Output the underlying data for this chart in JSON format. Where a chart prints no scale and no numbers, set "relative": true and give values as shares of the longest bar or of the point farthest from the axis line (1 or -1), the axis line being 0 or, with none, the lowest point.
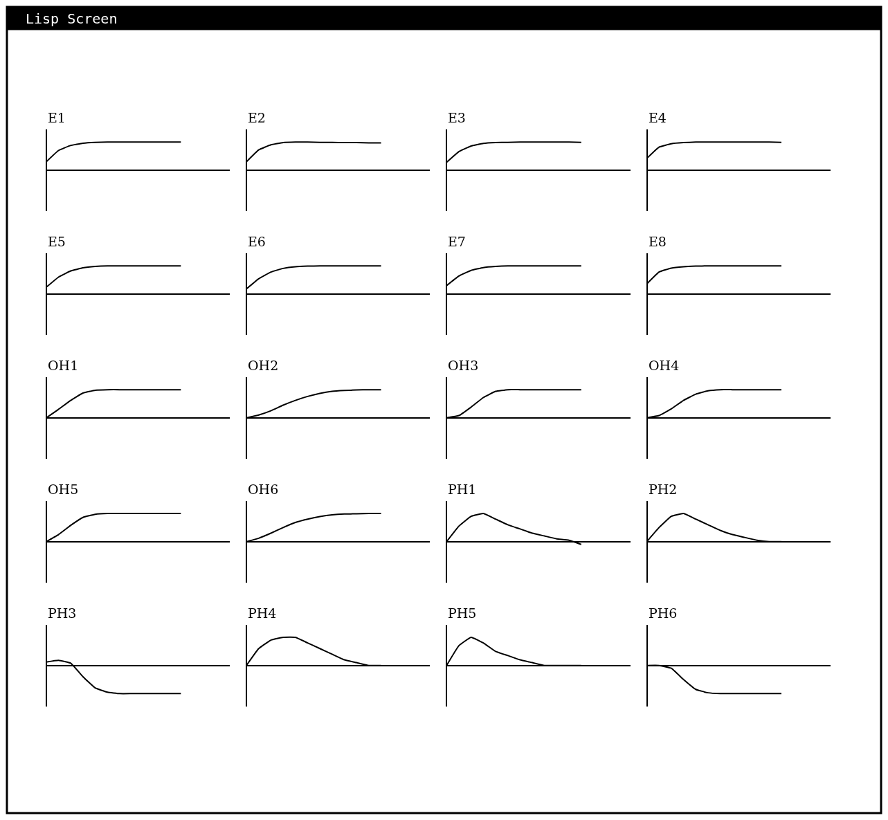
{
  "chart_data": [
    {
      "type": "line",
      "title": "E1",
      "relative": true,
      "color": "#000000",
      "categories": [
        null,
        null,
        null,
        null,
        null,
        null,
        null,
        null,
        null,
        null,
        null,
        null,
        null,
        null,
        null
      ],
      "values": [
        0.3,
        0.7,
        0.88,
        0.96,
        0.99,
        1,
        1,
        1,
        1,
        1,
        1,
        1,
        null,
        null,
        null
      ]
    },
    {
      "type": "line",
      "title": "E2",
      "relative": true,
      "color": "#000000",
      "categories": [
        null,
        null,
        null,
        null,
        null,
        null,
        null,
        null,
        null,
        null,
        null,
        null,
        null,
        null,
        null
      ],
      "values": [
        0.3,
        0.72,
        0.9,
        0.98,
        1,
        1,
        0.99,
        0.99,
        0.98,
        0.98,
        0.97,
        0.97,
        null,
        null,
        null
      ]
    },
    {
      "type": "line",
      "title": "E3",
      "relative": true,
      "color": "#000000",
      "categories": [
        null,
        null,
        null,
        null,
        null,
        null,
        null,
        null,
        null,
        null,
        null,
        null,
        null,
        null,
        null
      ],
      "values": [
        0.28,
        0.66,
        0.86,
        0.95,
        0.98,
        0.99,
        1,
        1,
        1,
        1,
        1,
        0.99,
        null,
        null,
        null
      ]
    },
    {
      "type": "line",
      "title": "E4",
      "relative": true,
      "color": "#000000",
      "categories": [
        null,
        null,
        null,
        null,
        null,
        null,
        null,
        null,
        null,
        null,
        null,
        null,
        null,
        null,
        null
      ],
      "values": [
        0.42,
        0.82,
        0.94,
        0.98,
        1,
        1,
        1,
        1,
        1,
        1,
        1,
        0.99,
        null,
        null,
        null
      ]
    },
    {
      "type": "line",
      "title": "E5",
      "relative": true,
      "color": "#000000",
      "categories": [
        null,
        null,
        null,
        null,
        null,
        null,
        null,
        null,
        null,
        null,
        null,
        null,
        null,
        null,
        null
      ],
      "values": [
        0.24,
        0.6,
        0.82,
        0.93,
        0.98,
        1,
        1,
        1,
        1,
        1,
        1,
        1,
        null,
        null,
        null
      ]
    },
    {
      "type": "line",
      "title": "E6",
      "relative": true,
      "color": "#000000",
      "categories": [
        null,
        null,
        null,
        null,
        null,
        null,
        null,
        null,
        null,
        null,
        null,
        null,
        null,
        null,
        null
      ],
      "values": [
        0.18,
        0.54,
        0.78,
        0.91,
        0.97,
        0.99,
        1,
        1,
        1,
        1,
        1,
        1,
        null,
        null,
        null
      ]
    },
    {
      "type": "line",
      "title": "E7",
      "relative": true,
      "color": "#000000",
      "categories": [
        null,
        null,
        null,
        null,
        null,
        null,
        null,
        null,
        null,
        null,
        null,
        null,
        null,
        null,
        null
      ],
      "values": [
        0.3,
        0.64,
        0.84,
        0.94,
        0.98,
        1,
        1,
        1,
        1,
        1,
        1,
        1,
        null,
        null,
        null
      ]
    },
    {
      "type": "line",
      "title": "E8",
      "relative": true,
      "color": "#000000",
      "categories": [
        null,
        null,
        null,
        null,
        null,
        null,
        null,
        null,
        null,
        null,
        null,
        null,
        null,
        null,
        null
      ],
      "values": [
        0.36,
        0.78,
        0.92,
        0.97,
        0.99,
        1,
        1,
        1,
        1,
        1,
        1,
        1,
        null,
        null,
        null
      ]
    },
    {
      "type": "line",
      "title": "OH1",
      "relative": true,
      "color": "#000000",
      "categories": [
        null,
        null,
        null,
        null,
        null,
        null,
        null,
        null,
        null,
        null,
        null,
        null,
        null,
        null,
        null
      ],
      "values": [
        0,
        0.3,
        0.62,
        0.88,
        0.98,
        1,
        1,
        1,
        1,
        1,
        1,
        1,
        null,
        null,
        null
      ]
    },
    {
      "type": "line",
      "title": "OH2",
      "relative": true,
      "color": "#000000",
      "categories": [
        null,
        null,
        null,
        null,
        null,
        null,
        null,
        null,
        null,
        null,
        null,
        null,
        null,
        null,
        null
      ],
      "values": [
        0,
        0.1,
        0.25,
        0.45,
        0.62,
        0.76,
        0.87,
        0.94,
        0.97,
        0.99,
        1,
        1,
        null,
        null,
        null
      ]
    },
    {
      "type": "line",
      "title": "OH3",
      "relative": true,
      "color": "#000000",
      "categories": [
        null,
        null,
        null,
        null,
        null,
        null,
        null,
        null,
        null,
        null,
        null,
        null,
        null,
        null,
        null
      ],
      "values": [
        0,
        0.08,
        0.38,
        0.72,
        0.94,
        1,
        1,
        1,
        1,
        1,
        1,
        1,
        null,
        null,
        null
      ]
    },
    {
      "type": "line",
      "title": "OH4",
      "relative": true,
      "color": "#000000",
      "categories": [
        null,
        null,
        null,
        null,
        null,
        null,
        null,
        null,
        null,
        null,
        null,
        null,
        null,
        null,
        null
      ],
      "values": [
        0,
        0.08,
        0.32,
        0.62,
        0.84,
        0.96,
        1,
        1,
        1,
        1,
        1,
        1,
        null,
        null,
        null
      ]
    },
    {
      "type": "line",
      "title": "OH5",
      "relative": true,
      "color": "#000000",
      "categories": [
        null,
        null,
        null,
        null,
        null,
        null,
        null,
        null,
        null,
        null,
        null,
        null,
        null,
        null,
        null
      ],
      "values": [
        0,
        0.25,
        0.58,
        0.86,
        0.97,
        1,
        1,
        1,
        1,
        1,
        1,
        1,
        null,
        null,
        null
      ]
    },
    {
      "type": "line",
      "title": "OH6",
      "relative": true,
      "color": "#000000",
      "categories": [
        null,
        null,
        null,
        null,
        null,
        null,
        null,
        null,
        null,
        null,
        null,
        null,
        null,
        null,
        null
      ],
      "values": [
        0,
        0.12,
        0.3,
        0.5,
        0.68,
        0.8,
        0.89,
        0.95,
        0.98,
        0.99,
        1,
        1,
        null,
        null,
        null
      ]
    },
    {
      "type": "line",
      "title": "PH1",
      "relative": true,
      "color": "#000000",
      "categories": [
        null,
        null,
        null,
        null,
        null,
        null,
        null,
        null,
        null,
        null,
        null,
        null,
        null,
        null,
        null
      ],
      "values": [
        0,
        0.55,
        0.9,
        1,
        0.8,
        0.6,
        0.45,
        0.3,
        0.2,
        0.1,
        0.05,
        -0.1,
        null,
        null,
        null
      ]
    },
    {
      "type": "line",
      "title": "PH2",
      "relative": true,
      "color": "#000000",
      "categories": [
        null,
        null,
        null,
        null,
        null,
        null,
        null,
        null,
        null,
        null,
        null,
        null,
        null,
        null,
        null
      ],
      "values": [
        0,
        0.5,
        0.9,
        1,
        0.8,
        0.6,
        0.4,
        0.25,
        0.15,
        0.05,
        0,
        0,
        null,
        null,
        null
      ]
    },
    {
      "type": "line",
      "title": "PH3",
      "relative": true,
      "color": "#000000",
      "categories": [
        null,
        null,
        null,
        null,
        null,
        null,
        null,
        null,
        null,
        null,
        null,
        null,
        null,
        null,
        null
      ],
      "values": [
        0.12,
        0.18,
        0.08,
        -0.4,
        -0.8,
        -0.95,
        -1,
        -1,
        -1,
        -1,
        -1,
        -1,
        null,
        null,
        null
      ]
    },
    {
      "type": "line",
      "title": "PH4",
      "relative": true,
      "color": "#000000",
      "categories": [
        null,
        null,
        null,
        null,
        null,
        null,
        null,
        null,
        null,
        null,
        null,
        null,
        null,
        null,
        null
      ],
      "values": [
        0,
        0.6,
        0.9,
        1,
        1,
        0.8,
        0.6,
        0.4,
        0.2,
        0.1,
        0,
        0,
        null,
        null,
        null
      ]
    },
    {
      "type": "line",
      "title": "PH5",
      "relative": true,
      "color": "#000000",
      "categories": [
        null,
        null,
        null,
        null,
        null,
        null,
        null,
        null,
        null,
        null,
        null,
        null,
        null,
        null,
        null
      ],
      "values": [
        0,
        0.7,
        1,
        0.8,
        0.5,
        0.35,
        0.2,
        0.1,
        0,
        0,
        0,
        0,
        null,
        null,
        null
      ]
    },
    {
      "type": "line",
      "title": "PH6",
      "relative": true,
      "color": "#000000",
      "categories": [
        null,
        null,
        null,
        null,
        null,
        null,
        null,
        null,
        null,
        null,
        null,
        null,
        null,
        null,
        null
      ],
      "values": [
        0,
        0,
        -0.1,
        -0.5,
        -0.85,
        -0.97,
        -1,
        -1,
        -1,
        -1,
        -1,
        -1,
        null,
        null,
        null
      ]
    },
    {
      "type": "other",
      "title": "Lisp Screen"
    }
  ]
}
